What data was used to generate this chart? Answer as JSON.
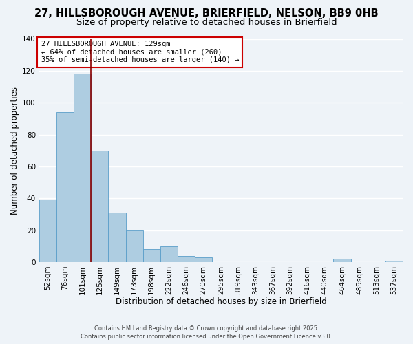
{
  "title_line1": "27, HILLSBOROUGH AVENUE, BRIERFIELD, NELSON, BB9 0HB",
  "title_line2": "Size of property relative to detached houses in Brierfield",
  "xlabel": "Distribution of detached houses by size in Brierfield",
  "ylabel": "Number of detached properties",
  "bar_labels": [
    "52sqm",
    "76sqm",
    "101sqm",
    "125sqm",
    "149sqm",
    "173sqm",
    "198sqm",
    "222sqm",
    "246sqm",
    "270sqm",
    "295sqm",
    "319sqm",
    "343sqm",
    "367sqm",
    "392sqm",
    "416sqm",
    "440sqm",
    "464sqm",
    "489sqm",
    "513sqm",
    "537sqm"
  ],
  "bar_values": [
    39,
    94,
    118,
    70,
    31,
    20,
    8,
    10,
    4,
    3,
    0,
    0,
    0,
    0,
    0,
    0,
    0,
    2,
    0,
    0,
    1
  ],
  "bar_color": "#aecde1",
  "bar_edge_color": "#5a9ec9",
  "vline_color": "#8b0000",
  "ylim": [
    0,
    140
  ],
  "yticks": [
    0,
    20,
    40,
    60,
    80,
    100,
    120,
    140
  ],
  "annotation_title": "27 HILLSBOROUGH AVENUE: 129sqm",
  "annotation_line1": "← 64% of detached houses are smaller (260)",
  "annotation_line2": "35% of semi-detached houses are larger (140) →",
  "annotation_box_facecolor": "#ffffff",
  "annotation_box_edgecolor": "#cc0000",
  "footer_line1": "Contains HM Land Registry data © Crown copyright and database right 2025.",
  "footer_line2": "Contains public sector information licensed under the Open Government Licence v3.0.",
  "background_color": "#eef3f8",
  "grid_color": "#ffffff",
  "title_fontsize": 10.5,
  "subtitle_fontsize": 9.5,
  "axis_label_fontsize": 8.5,
  "tick_fontsize": 7.5,
  "annotation_fontsize": 7.5,
  "footer_fontsize": 6.0
}
